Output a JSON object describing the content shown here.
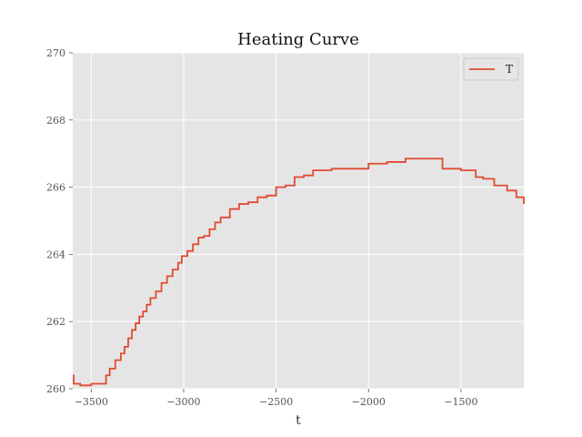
{
  "chart_data": {
    "type": "line",
    "title": "Heating Curve",
    "xlabel": "t",
    "ylabel": "",
    "xlim": [
      -3600,
      -1160
    ],
    "ylim": [
      260,
      270
    ],
    "xticks": [
      -3500,
      -3000,
      -2500,
      -2000,
      -1500
    ],
    "xtick_labels": [
      "−3500",
      "−3000",
      "−2500",
      "−2000",
      "−1500"
    ],
    "yticks": [
      260,
      262,
      264,
      266,
      268,
      270
    ],
    "ytick_labels": [
      "260",
      "262",
      "264",
      "266",
      "268",
      "270"
    ],
    "grid": true,
    "legend": {
      "placement": "top-right",
      "entries": [
        "T"
      ]
    },
    "colors": {
      "series": "#e24a33",
      "plot_bg": "#e5e5e5",
      "grid": "#ffffff"
    },
    "series": [
      {
        "name": "T",
        "step": true,
        "x": [
          -3600,
          -3595,
          -3560,
          -3500,
          -3450,
          -3420,
          -3400,
          -3370,
          -3340,
          -3320,
          -3300,
          -3280,
          -3260,
          -3240,
          -3220,
          -3200,
          -3180,
          -3150,
          -3120,
          -3090,
          -3060,
          -3030,
          -3010,
          -2980,
          -2950,
          -2920,
          -2890,
          -2860,
          -2830,
          -2800,
          -2750,
          -2700,
          -2650,
          -2600,
          -2550,
          -2500,
          -2450,
          -2400,
          -2350,
          -2300,
          -2200,
          -2100,
          -2000,
          -1900,
          -1800,
          -1750,
          -1700,
          -1600,
          -1500,
          -1420,
          -1380,
          -1320,
          -1250,
          -1200,
          -1160
        ],
        "y": [
          260.4,
          260.15,
          260.1,
          260.15,
          260.15,
          260.4,
          260.6,
          260.85,
          261.05,
          261.25,
          261.5,
          261.75,
          261.95,
          262.15,
          262.3,
          262.5,
          262.7,
          262.9,
          263.15,
          263.35,
          263.55,
          263.75,
          263.95,
          264.1,
          264.3,
          264.5,
          264.55,
          264.75,
          264.95,
          265.1,
          265.35,
          265.5,
          265.55,
          265.7,
          265.75,
          266.0,
          266.05,
          266.3,
          266.35,
          266.5,
          266.55,
          266.55,
          266.7,
          266.75,
          266.85,
          266.85,
          266.85,
          266.55,
          266.5,
          266.3,
          266.25,
          266.05,
          265.9,
          265.7,
          265.5
        ]
      }
    ]
  }
}
